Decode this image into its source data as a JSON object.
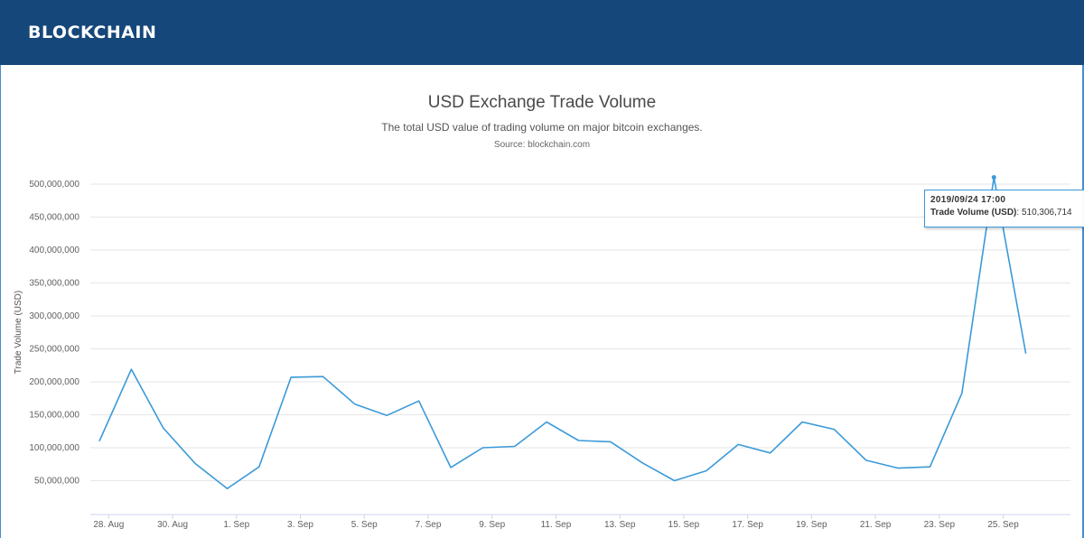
{
  "header": {
    "brand": "BLOCKCHAIN"
  },
  "colors": {
    "header_bg": "#15477a",
    "series_line": "#3a9ad9",
    "grid": "#e6e6e6"
  },
  "chart_data": {
    "type": "line",
    "title": "USD Exchange Trade Volume",
    "subtitle": "The total USD value of trading volume on major bitcoin exchanges.",
    "source": "Source: blockchain.com",
    "ylabel": "Trade Volume (USD)",
    "xlabel": "",
    "grid": true,
    "legend": "none",
    "ylim": [
      0,
      500000000
    ],
    "yticks": [
      {
        "value": 50000000,
        "label": "50,000,000"
      },
      {
        "value": 100000000,
        "label": "100,000,000"
      },
      {
        "value": 150000000,
        "label": "150,000,000"
      },
      {
        "value": 200000000,
        "label": "200,000,000"
      },
      {
        "value": 250000000,
        "label": "250,000,000"
      },
      {
        "value": 300000000,
        "label": "300,000,000"
      },
      {
        "value": 350000000,
        "label": "350,000,000"
      },
      {
        "value": 400000000,
        "label": "400,000,000"
      },
      {
        "value": 450000000,
        "label": "450,000,000"
      },
      {
        "value": 500000000,
        "label": "500,000,000"
      }
    ],
    "xlim": [
      "2019-08-27T17:00",
      "2019-09-26T17:00"
    ],
    "xticks": [
      {
        "date": "2019-08-28",
        "label": "28. Aug"
      },
      {
        "date": "2019-08-30",
        "label": "30. Aug"
      },
      {
        "date": "2019-09-01",
        "label": "1. Sep"
      },
      {
        "date": "2019-09-03",
        "label": "3. Sep"
      },
      {
        "date": "2019-09-05",
        "label": "5. Sep"
      },
      {
        "date": "2019-09-07",
        "label": "7. Sep"
      },
      {
        "date": "2019-09-09",
        "label": "9. Sep"
      },
      {
        "date": "2019-09-11",
        "label": "11. Sep"
      },
      {
        "date": "2019-09-13",
        "label": "13. Sep"
      },
      {
        "date": "2019-09-15",
        "label": "15. Sep"
      },
      {
        "date": "2019-09-17",
        "label": "17. Sep"
      },
      {
        "date": "2019-09-19",
        "label": "19. Sep"
      },
      {
        "date": "2019-09-21",
        "label": "21. Sep"
      },
      {
        "date": "2019-09-23",
        "label": "23. Sep"
      },
      {
        "date": "2019-09-25",
        "label": "25. Sep"
      }
    ],
    "series": [
      {
        "name": "Trade Volume (USD)",
        "points": [
          {
            "x": "2019-08-27T17:00",
            "y": 110000000
          },
          {
            "x": "2019-08-28T17:00",
            "y": 219000000
          },
          {
            "x": "2019-08-29T17:00",
            "y": 130000000
          },
          {
            "x": "2019-08-30T17:00",
            "y": 76000000
          },
          {
            "x": "2019-08-31T17:00",
            "y": 38000000
          },
          {
            "x": "2019-09-01T17:00",
            "y": 71000000
          },
          {
            "x": "2019-09-02T17:00",
            "y": 207000000
          },
          {
            "x": "2019-09-03T17:00",
            "y": 208000000
          },
          {
            "x": "2019-09-04T17:00",
            "y": 166000000
          },
          {
            "x": "2019-09-05T17:00",
            "y": 149000000
          },
          {
            "x": "2019-09-06T17:00",
            "y": 171000000
          },
          {
            "x": "2019-09-07T17:00",
            "y": 70000000
          },
          {
            "x": "2019-09-08T17:00",
            "y": 100000000
          },
          {
            "x": "2019-09-09T17:00",
            "y": 102000000
          },
          {
            "x": "2019-09-10T17:00",
            "y": 139000000
          },
          {
            "x": "2019-09-11T17:00",
            "y": 111000000
          },
          {
            "x": "2019-09-12T17:00",
            "y": 109000000
          },
          {
            "x": "2019-09-13T17:00",
            "y": 77000000
          },
          {
            "x": "2019-09-14T17:00",
            "y": 50000000
          },
          {
            "x": "2019-09-15T17:00",
            "y": 65000000
          },
          {
            "x": "2019-09-16T17:00",
            "y": 105000000
          },
          {
            "x": "2019-09-17T17:00",
            "y": 92000000
          },
          {
            "x": "2019-09-18T17:00",
            "y": 139000000
          },
          {
            "x": "2019-09-19T17:00",
            "y": 128000000
          },
          {
            "x": "2019-09-20T17:00",
            "y": 81000000
          },
          {
            "x": "2019-09-21T17:00",
            "y": 69000000
          },
          {
            "x": "2019-09-22T17:00",
            "y": 71000000
          },
          {
            "x": "2019-09-23T17:00",
            "y": 183000000
          },
          {
            "x": "2019-09-24T17:00",
            "y": 510306714
          },
          {
            "x": "2019-09-25T17:00",
            "y": 243000000
          }
        ]
      }
    ],
    "tooltip": {
      "date": "2019/09/24 17:00",
      "series_label": "Trade Volume (USD)",
      "value": "510,306,714",
      "x": "2019-09-24T17:00",
      "y": 510306714
    }
  }
}
